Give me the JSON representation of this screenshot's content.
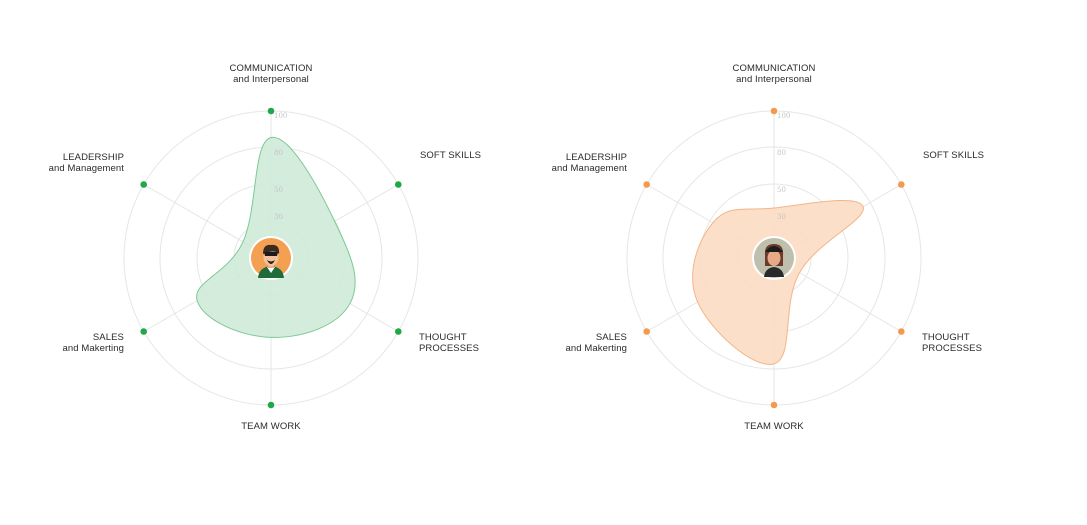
{
  "chart_data": [
    {
      "type": "radar",
      "axes": [
        {
          "line1": "COMMUNICATION",
          "line2": "and Interpersonal"
        },
        {
          "line1": "SOFT SKILLS",
          "line2": ""
        },
        {
          "line1": "THOUGHT",
          "line2": "PROCESSES"
        },
        {
          "line1": "TEAM WORK",
          "line2": ""
        },
        {
          "line1": "SALES",
          "line2": "and Makerting"
        },
        {
          "line1": "LEADERSHIP",
          "line2": "and Management"
        }
      ],
      "ticks": [
        "30",
        "50",
        "80",
        "100"
      ],
      "values": [
        82,
        50,
        62,
        54,
        58,
        22
      ],
      "scale_max": 100,
      "color": "#1fa84a",
      "fill": "#cfead8",
      "stroke": "#7cc994",
      "avatar": "man-avatar-icon"
    },
    {
      "type": "radar",
      "axes": [
        {
          "line1": "COMMUNICATION",
          "line2": "and Interpersonal"
        },
        {
          "line1": "SOFT SKILLS",
          "line2": ""
        },
        {
          "line1": "THOUGHT",
          "line2": "PROCESSES"
        },
        {
          "line1": "TEAM WORK",
          "line2": ""
        },
        {
          "line1": "SALES",
          "line2": "and Makerting"
        },
        {
          "line1": "LEADERSHIP",
          "line2": "and Management"
        }
      ],
      "ticks": [
        "30",
        "50",
        "80",
        "100"
      ],
      "values": [
        34,
        70,
        20,
        72,
        60,
        48
      ],
      "scale_max": 100,
      "color": "#f59a4c",
      "fill": "#fcdcc2",
      "stroke": "#f2b58a",
      "avatar": "woman-avatar-icon"
    }
  ]
}
